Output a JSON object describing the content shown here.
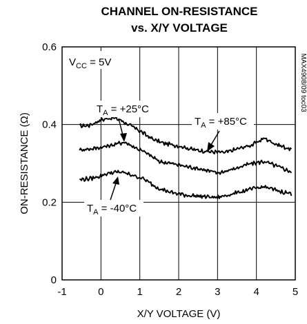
{
  "chart_data": {
    "type": "line",
    "title_line1": "CHANNEL ON-RESISTANCE",
    "title_line2": "vs. X/Y VOLTAGE",
    "xlabel": "X/Y VOLTAGE (V)",
    "ylabel": "ON-RESISTANCE (Ω)",
    "xlim": [
      -1,
      5
    ],
    "ylim": [
      0,
      0.6
    ],
    "x_ticks": [
      "-1",
      "0",
      "1",
      "2",
      "3",
      "4",
      "5"
    ],
    "y_ticks": [
      "0",
      "0.2",
      "0.4",
      "0.6"
    ],
    "grid": true,
    "side_text": "MAX4908/09 toc03",
    "annotations": {
      "vcc": {
        "main": "V",
        "sub": "CC",
        "rest": " = 5V"
      },
      "t25": {
        "main": "T",
        "sub": "A",
        "rest": " = +25°C"
      },
      "t85": {
        "main": "T",
        "sub": "A",
        "rest": " = +85°C"
      },
      "tm40": {
        "main": "T",
        "sub": "A",
        "rest": " = -40°C"
      }
    },
    "series": [
      {
        "x": [
          -0.55,
          -0.3,
          0,
          0.3,
          0.5,
          0.7,
          1.0,
          1.3,
          1.6,
          2.0,
          2.4,
          2.8,
          3.2,
          3.6,
          3.9,
          4.2,
          4.5,
          4.9
        ],
        "values": [
          0.396,
          0.398,
          0.412,
          0.418,
          0.412,
          0.4,
          0.384,
          0.364,
          0.352,
          0.345,
          0.335,
          0.33,
          0.328,
          0.34,
          0.348,
          0.365,
          0.35,
          0.335
        ]
      },
      {
        "x": [
          -0.55,
          -0.2,
          0.2,
          0.6,
          0.9,
          1.2,
          1.5,
          1.8,
          2.2,
          2.6,
          3.0,
          3.4,
          3.8,
          4.2,
          4.6,
          4.9
        ],
        "values": [
          0.335,
          0.338,
          0.345,
          0.355,
          0.34,
          0.325,
          0.305,
          0.3,
          0.292,
          0.285,
          0.275,
          0.285,
          0.298,
          0.305,
          0.29,
          0.278
        ]
      },
      {
        "x": [
          -0.55,
          -0.2,
          0.2,
          0.5,
          0.8,
          1.1,
          1.4,
          1.8,
          2.2,
          2.6,
          3.0,
          3.4,
          3.8,
          4.2,
          4.6,
          4.9
        ],
        "values": [
          0.258,
          0.262,
          0.275,
          0.278,
          0.27,
          0.26,
          0.24,
          0.225,
          0.218,
          0.215,
          0.212,
          0.222,
          0.232,
          0.24,
          0.228,
          0.222
        ]
      }
    ],
    "colors": {
      "line": "#000000",
      "grid": "#000000",
      "background": "#ffffff"
    }
  }
}
